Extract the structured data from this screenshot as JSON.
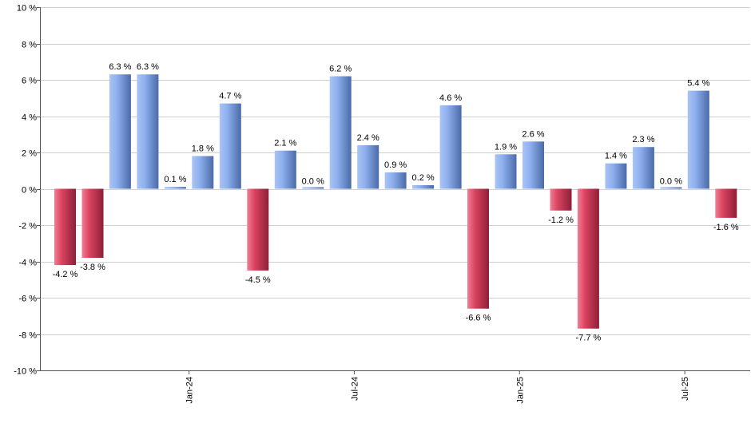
{
  "chart_data": {
    "type": "bar",
    "title": "",
    "xlabel": "",
    "ylabel": "",
    "ylim": [
      -10,
      10
    ],
    "y_ticks": [
      10,
      8,
      6,
      4,
      2,
      0,
      -2,
      -4,
      -6,
      -8,
      -10
    ],
    "y_tick_labels": [
      "10 %",
      "8 %",
      "6 %",
      "4 %",
      "2 %",
      "0 %",
      "-2 %",
      "-4 %",
      "-6 %",
      "-8 %",
      "-10 %"
    ],
    "x_tick_labels": [
      {
        "label": "Jan-24",
        "after_index": 4
      },
      {
        "label": "Jul-24",
        "after_index": 10
      },
      {
        "label": "Jan-25",
        "after_index": 16
      },
      {
        "label": "Jul-25",
        "after_index": 22
      }
    ],
    "grid": true,
    "values": [
      -4.2,
      -3.8,
      6.3,
      6.3,
      0.1,
      1.8,
      4.7,
      -4.5,
      2.1,
      0.0,
      6.2,
      2.4,
      0.9,
      0.2,
      4.6,
      -6.6,
      1.9,
      2.6,
      -1.2,
      -7.7,
      1.4,
      2.3,
      0.0,
      5.4,
      -1.6
    ],
    "value_labels": [
      "-4.2 %",
      "-3.8 %",
      "6.3 %",
      "6.3 %",
      "0.1 %",
      "1.8 %",
      "4.7 %",
      "-4.5 %",
      "2.1 %",
      "0.0 %",
      "6.2 %",
      "2.4 %",
      "0.9 %",
      "0.2 %",
      "4.6 %",
      "-6.6 %",
      "1.9 %",
      "2.6 %",
      "-1.2 %",
      "-7.7 %",
      "1.4 %",
      "2.3 %",
      "0.0 %",
      "5.4 %",
      "-1.6 %"
    ],
    "colors": {
      "positive_light": "#a9c4f5",
      "positive_dark": "#4a6aa8",
      "negative_light": "#f27d92",
      "negative_dark": "#8e1f38"
    }
  }
}
